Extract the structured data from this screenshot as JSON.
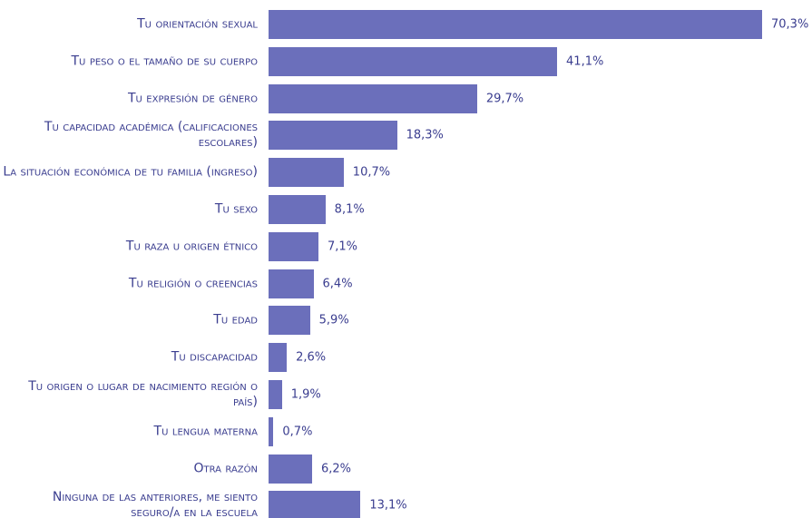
{
  "chart_data": {
    "type": "bar",
    "orientation": "horizontal",
    "color": "#6b6fbb",
    "categories": [
      "Tu orientación sexual",
      "Tu peso o el tamaño de su cuerpo",
      "Tu expresión de género",
      "Tu capacidad académica (calificaciones escolares)",
      "La situación económica de tu familia (ingreso)",
      "Tu sexo",
      "Tu raza u origen étnico",
      "Tu religión o creencias",
      "Tu edad",
      "Tu discapacidad",
      "Tu origen o lugar de nacimiento región o país)",
      "Tu lengua materna",
      "Otra razón",
      "Ninguna de las anteriores, me siento seguro/a en la escuela"
    ],
    "values": [
      70.3,
      41.1,
      29.7,
      18.3,
      10.7,
      8.1,
      7.1,
      6.4,
      5.9,
      2.6,
      1.9,
      0.7,
      6.2,
      13.1
    ],
    "value_labels": [
      "70,3%",
      "41,1%",
      "29,7%",
      "18,3%",
      "10,7%",
      "8,1%",
      "7,1%",
      "6,4%",
      "5,9%",
      "2,6%",
      "1,9%",
      "0,7%",
      "6,2%",
      "13,1%"
    ]
  }
}
